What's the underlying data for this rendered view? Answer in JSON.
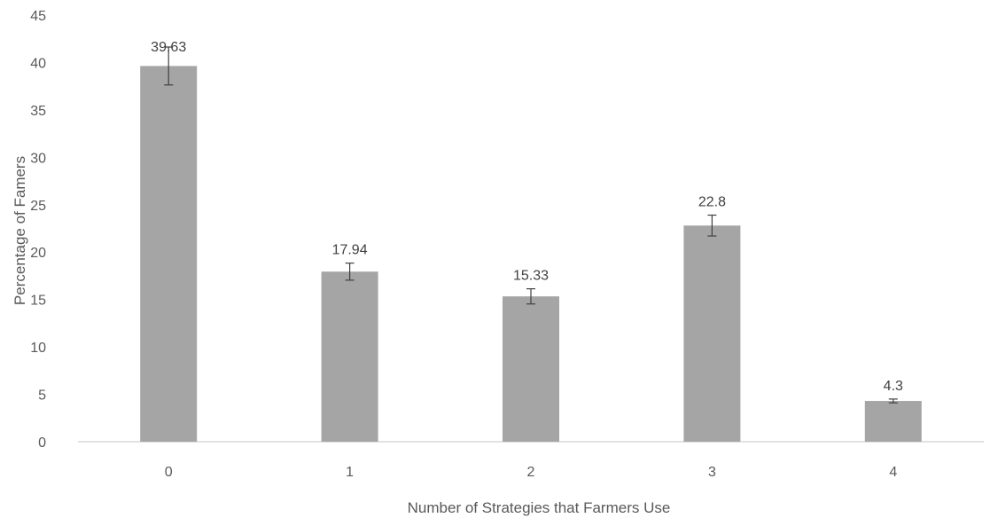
{
  "chart_data": {
    "type": "bar",
    "title": "",
    "xlabel": "Number of  Strategies that Farmers Use",
    "ylabel": "Percentage of Famers",
    "categories": [
      "0",
      "1",
      "2",
      "3",
      "4"
    ],
    "values": [
      39.63,
      17.94,
      15.33,
      22.8,
      4.3
    ],
    "data_labels": [
      "39.63",
      "17.94",
      "15.33",
      "22.8",
      "4.3"
    ],
    "error_bars": [
      2.0,
      0.9,
      0.8,
      1.1,
      0.2
    ],
    "ylim": [
      0,
      45
    ],
    "yticks": [
      0,
      5,
      10,
      15,
      20,
      25,
      30,
      35,
      40,
      45
    ],
    "grid": false,
    "legend": "none",
    "bar_color": "#a5a5a5",
    "axis_color": "#d9d9d9",
    "error_bar_color": "#404040"
  }
}
